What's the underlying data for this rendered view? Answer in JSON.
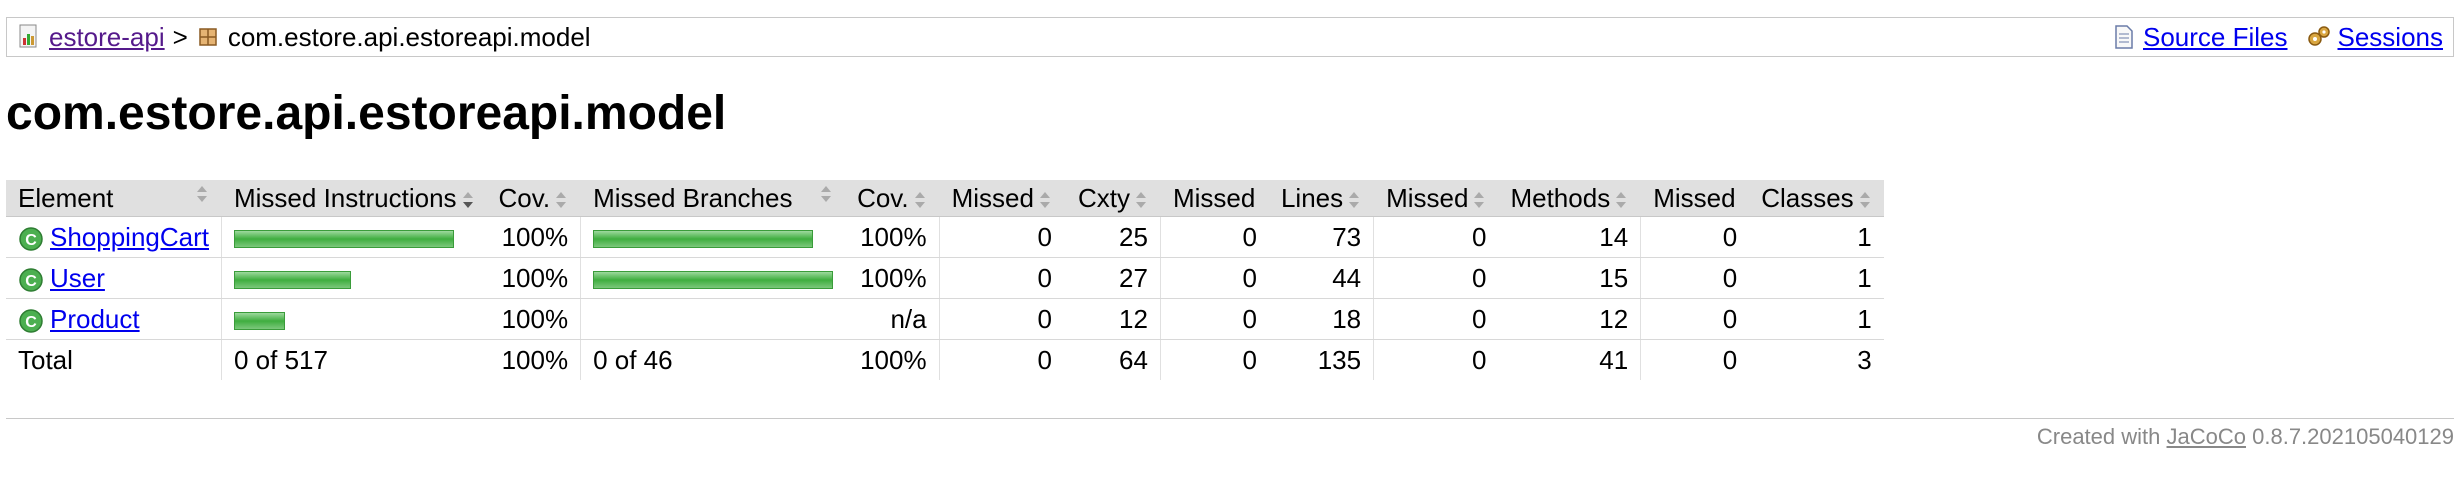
{
  "breadcrumb": {
    "project": "estore-api",
    "separator": ">",
    "package": "com.estore.api.estoreapi.model",
    "source_files": "Source Files",
    "sessions": "Sessions"
  },
  "title": "com.estore.api.estoreapi.model",
  "table": {
    "headers": [
      "Element",
      "Missed Instructions",
      "Cov.",
      "Missed Branches",
      "Cov.",
      "Missed",
      "Cxty",
      "Missed",
      "Lines",
      "Missed",
      "Methods",
      "Missed",
      "Classes"
    ],
    "rows": [
      {
        "name": "ShoppingCart",
        "instr_bar": 1.0,
        "instr_cov": "100%",
        "branch_bar": 1.0,
        "branch_cov": "100%",
        "missed_cxty": "0",
        "cxty": "25",
        "missed_lines": "0",
        "lines": "73",
        "missed_methods": "0",
        "methods": "14",
        "missed_classes": "0",
        "classes": "1"
      },
      {
        "name": "User",
        "instr_bar": 0.53,
        "instr_cov": "100%",
        "branch_bar": 1.09,
        "branch_cov": "100%",
        "missed_cxty": "0",
        "cxty": "27",
        "missed_lines": "0",
        "lines": "44",
        "missed_methods": "0",
        "methods": "15",
        "missed_classes": "0",
        "classes": "1"
      },
      {
        "name": "Product",
        "instr_bar": 0.23,
        "instr_cov": "100%",
        "branch_bar": 0,
        "branch_cov": "n/a",
        "missed_cxty": "0",
        "cxty": "12",
        "missed_lines": "0",
        "lines": "18",
        "missed_methods": "0",
        "methods": "12",
        "missed_classes": "0",
        "classes": "1"
      }
    ],
    "total": {
      "label": "Total",
      "instr": "0 of 517",
      "instr_cov": "100%",
      "branch": "0 of 46",
      "branch_cov": "100%",
      "missed_cxty": "0",
      "cxty": "64",
      "missed_lines": "0",
      "lines": "135",
      "missed_methods": "0",
      "methods": "41",
      "missed_classes": "0",
      "classes": "3"
    }
  },
  "footer": {
    "prefix": "Created with",
    "tool": "JaCoCo",
    "version": "0.8.7.202105040129"
  },
  "colors": {
    "bar": "#3fae3f",
    "header_bg": "#e0e0e0",
    "link": "#0000ee",
    "visited": "#551a8b"
  }
}
